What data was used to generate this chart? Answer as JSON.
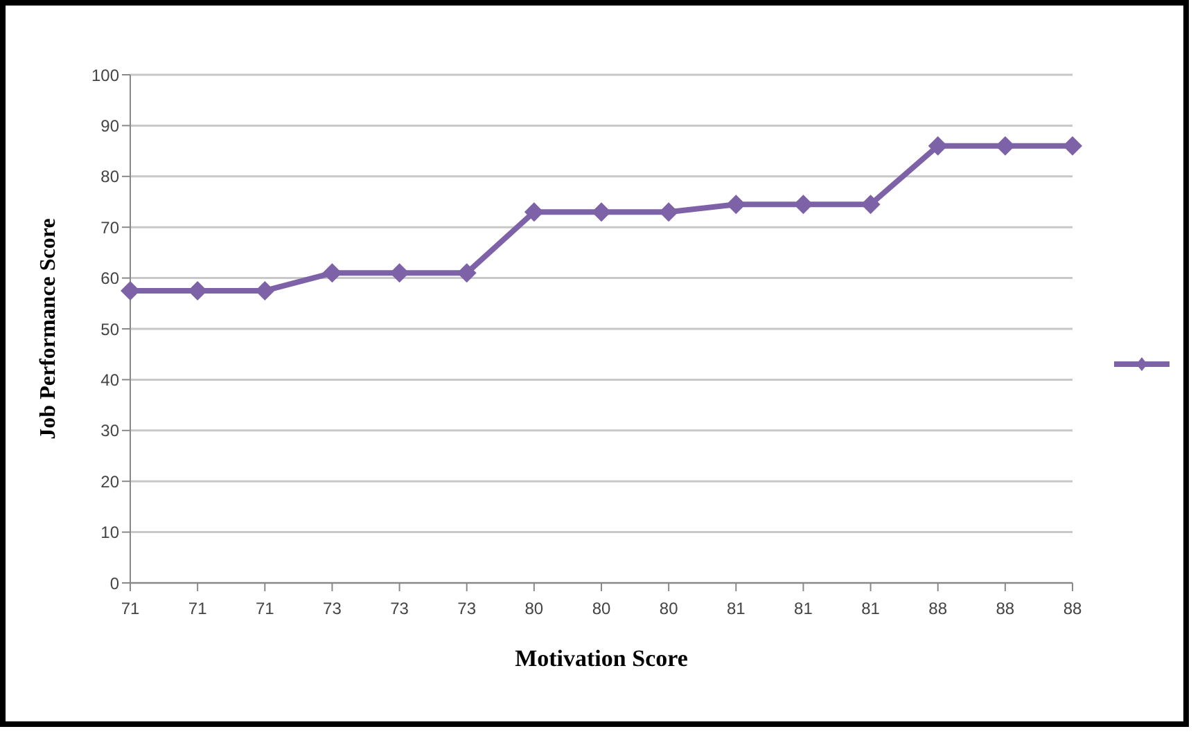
{
  "chart_data": {
    "type": "line",
    "xlabel": "Motivation Score",
    "ylabel": "Job Performance Score",
    "categories": [
      "71",
      "71",
      "71",
      "73",
      "73",
      "73",
      "80",
      "80",
      "80",
      "81",
      "81",
      "81",
      "88",
      "88",
      "88"
    ],
    "series": [
      {
        "color": "#7e62a8",
        "values": [
          57.5,
          57.5,
          57.5,
          61,
          61,
          61,
          73,
          73,
          73,
          74.5,
          74.5,
          74.5,
          86,
          86,
          86
        ]
      }
    ],
    "ylim": [
      0,
      100
    ],
    "yticks": [
      0,
      10,
      20,
      30,
      40,
      50,
      60,
      70,
      80,
      90,
      100
    ],
    "grid": "y",
    "marker": "diamond",
    "line_style": "solid"
  }
}
